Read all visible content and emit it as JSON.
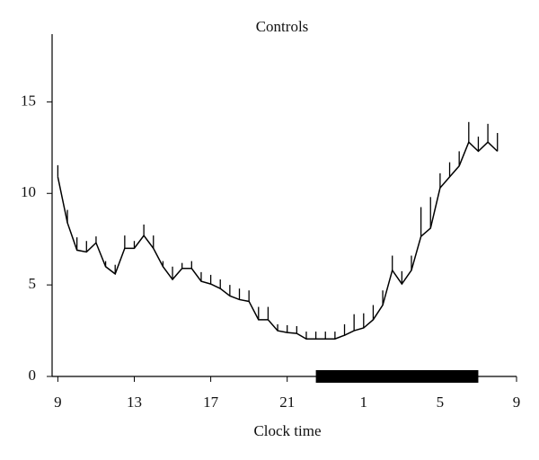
{
  "chart_data": {
    "type": "line",
    "title": "Controls",
    "x_label": "Clock time",
    "x": [
      9,
      9.5,
      10,
      10.5,
      11,
      11.5,
      12,
      12.5,
      13,
      13.5,
      14,
      14.5,
      15,
      15.5,
      16,
      16.5,
      17,
      17.5,
      18,
      18.5,
      19,
      19.5,
      20,
      20.5,
      21,
      21.5,
      22,
      22.5,
      23,
      23.5,
      24,
      24.5,
      25,
      25.5,
      26,
      26.5,
      27,
      27.5,
      28,
      28.5,
      29,
      29.5,
      30,
      30.5,
      31,
      31.5,
      32
    ],
    "series": [
      {
        "color": "#000000",
        "values": [
          10.9,
          8.4,
          6.9,
          6.8,
          7.3,
          6.0,
          5.6,
          7.0,
          7.0,
          7.7,
          7.0,
          6.0,
          5.3,
          5.9,
          5.9,
          5.2,
          5.05,
          4.8,
          4.4,
          4.2,
          4.1,
          3.1,
          3.1,
          2.5,
          2.4,
          2.35,
          2.05,
          2.05,
          2.05,
          2.05,
          2.25,
          2.5,
          2.65,
          3.1,
          3.9,
          5.8,
          5.05,
          5.8,
          7.65,
          8.1,
          10.3,
          10.9,
          11.5,
          12.8,
          12.3,
          12.8,
          12.3
        ],
        "errors": [
          0.64,
          0.7,
          0.7,
          0.6,
          0.35,
          0.3,
          0.5,
          0.7,
          0.4,
          0.6,
          0.7,
          0.3,
          0.7,
          0.3,
          0.4,
          0.5,
          0.5,
          0.5,
          0.6,
          0.6,
          0.6,
          0.7,
          0.7,
          0.35,
          0.4,
          0.4,
          0.4,
          0.4,
          0.4,
          0.4,
          0.6,
          0.9,
          0.8,
          0.8,
          0.8,
          0.8,
          0.7,
          0.8,
          1.6,
          1.7,
          0.8,
          0.8,
          0.8,
          1.1,
          0.8,
          1.0,
          1.0
        ]
      }
    ],
    "dark_period": [
      22.5,
      31
    ],
    "xlim": [
      8.7,
      33
    ],
    "xticks": [
      9,
      13,
      17,
      21,
      {
        "value": 25,
        "label": "1"
      },
      {
        "value": 29,
        "label": "5"
      },
      {
        "value": 33,
        "label": "9"
      }
    ],
    "ylim": [
      0,
      18.7
    ],
    "yticks": [
      0,
      5,
      10,
      15
    ]
  }
}
